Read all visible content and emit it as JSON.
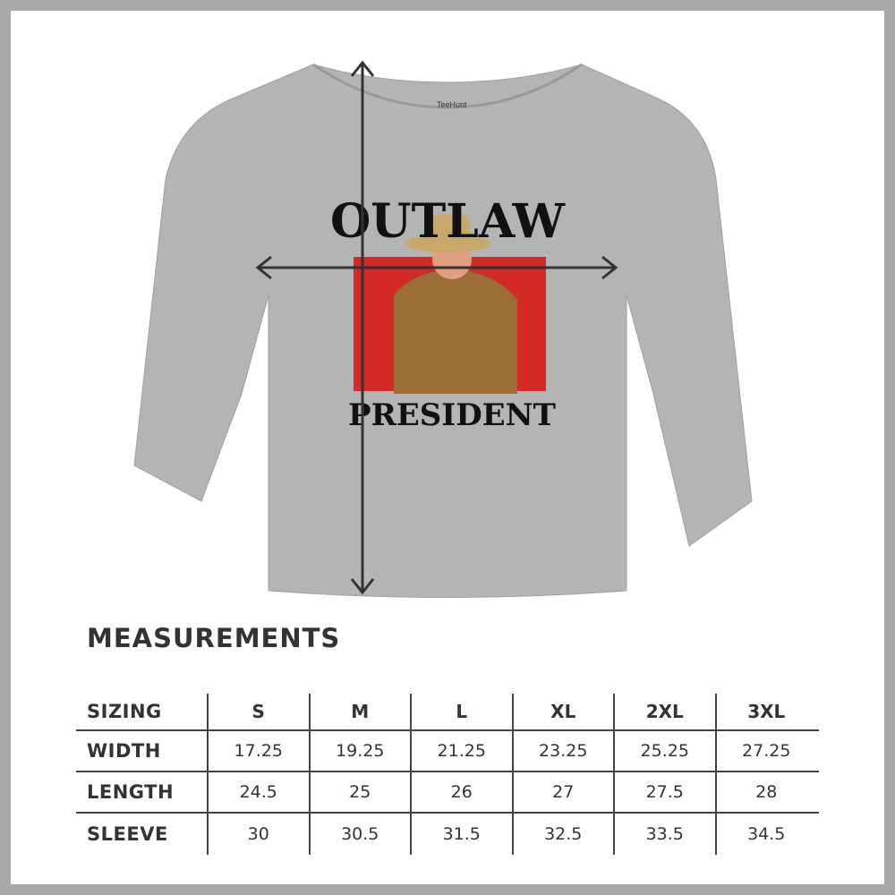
{
  "product": {
    "print_top": "OUTLAW",
    "print_bottom": "PRESIDENT",
    "tag_brand": "TeeHunt",
    "shirt_color": "#b4b4b4",
    "accent_red": "#d42a27"
  },
  "measurements": {
    "title": "MEASUREMENTS",
    "header": [
      "SIZING",
      "S",
      "M",
      "L",
      "XL",
      "2XL",
      "3XL"
    ],
    "rows": [
      {
        "label": "WIDTH",
        "values": [
          "17.25",
          "19.25",
          "21.25",
          "23.25",
          "25.25",
          "27.25"
        ]
      },
      {
        "label": "LENGTH",
        "values": [
          "24.5",
          "25",
          "26",
          "27",
          "27.5",
          "28"
        ]
      },
      {
        "label": "SLEEVE",
        "values": [
          "30",
          "30.5",
          "31.5",
          "32.5",
          "33.5",
          "34.5"
        ]
      }
    ]
  }
}
